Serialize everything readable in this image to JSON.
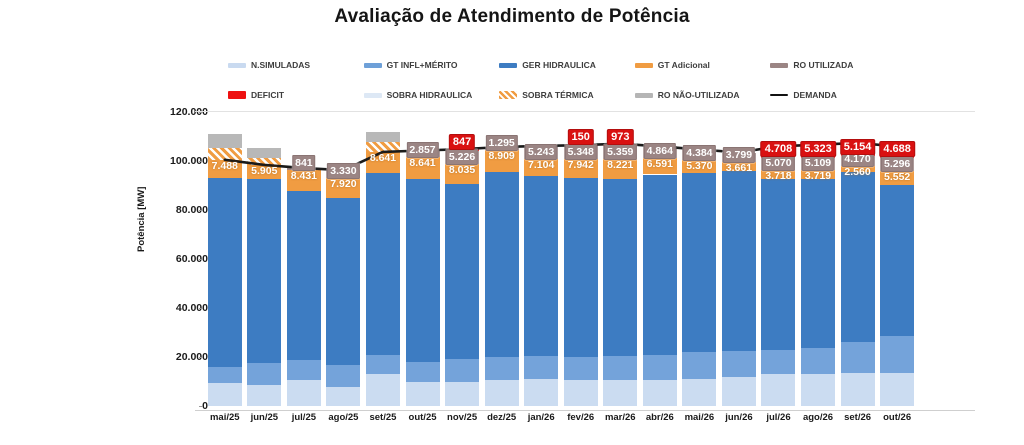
{
  "page": {
    "title": "Avaliação de Atendimento de Potência",
    "background": "#ffffff"
  },
  "chart_data": {
    "type": "bar",
    "subtype": "stacked-bars-with-demand-line",
    "title": "Avaliação de Atendimento de Potência",
    "xlabel": "",
    "ylabel": "Potência [MW]",
    "ylim": [
      0,
      120000
    ],
    "yticks": [
      {
        "value": 0,
        "label": "0"
      },
      {
        "value": 20000,
        "label": "20.000"
      },
      {
        "value": 40000,
        "label": "40.000"
      },
      {
        "value": 60000,
        "label": "60.000"
      },
      {
        "value": 80000,
        "label": "80.000"
      },
      {
        "value": 100000,
        "label": "100.000"
      },
      {
        "value": 120000,
        "label": "120.000"
      }
    ],
    "grid": false,
    "legend_position": "top",
    "categories": [
      "mai/25",
      "jun/25",
      "jul/25",
      "ago/25",
      "set/25",
      "out/25",
      "nov/25",
      "dez/25",
      "jan/26",
      "fev/26",
      "mar/26",
      "abr/26",
      "mai/26",
      "jun/26",
      "jul/26",
      "ago/26",
      "set/26",
      "out/26"
    ],
    "legend": [
      {
        "label": "N.SIMULADAS",
        "swatch_color": "#c9daf0",
        "swatch_style": "bar"
      },
      {
        "label": "GT INFL+MÉRITO",
        "swatch_color": "#6ea0d8",
        "swatch_style": "bar"
      },
      {
        "label": "GER HIDRAULICA",
        "swatch_color": "#3d7cc2",
        "swatch_style": "bar"
      },
      {
        "label": "GT Adicional",
        "swatch_color": "#f09c42",
        "swatch_style": "bar"
      },
      {
        "label": "RO UTILIZADA",
        "swatch_color": "#9b8584",
        "swatch_style": "bar"
      },
      {
        "label": "DEFICIT",
        "swatch_color": "#ee1111",
        "swatch_style": "deficit"
      },
      {
        "label": "SOBRA HIDRAULICA",
        "swatch_color": "#dde8f5",
        "swatch_style": "bar"
      },
      {
        "label": "SOBRA TÉRMICA",
        "swatch_color": "#f09c42",
        "swatch_style": "hatch"
      },
      {
        "label": "RO NÃO-UTILIZADA",
        "swatch_color": "#b5b5b5",
        "swatch_style": "bar"
      },
      {
        "label": "DEMANDA",
        "swatch_color": "#111111",
        "swatch_style": "line"
      }
    ],
    "series": [
      {
        "key": "n_simuladas",
        "name": "N.SIMULADAS",
        "color": "#cbdcf1",
        "values": [
          9400,
          8600,
          10600,
          7800,
          13000,
          10000,
          10000,
          10500,
          11000,
          10500,
          10500,
          10500,
          11000,
          12000,
          13000,
          13000,
          13500,
          13500
        ]
      },
      {
        "key": "gt_infl_merito",
        "name": "GT INFL+MÉRITO",
        "color": "#74a3da",
        "values": [
          6500,
          9000,
          8000,
          9000,
          8000,
          8000,
          9000,
          9500,
          9500,
          9500,
          10000,
          10500,
          11000,
          10500,
          10000,
          10500,
          12500,
          15000
        ]
      },
      {
        "key": "ger_hidraulica",
        "name": "GER HIDRAULICA",
        "color": "#3d7cc2",
        "values": [
          77112,
          74895,
          69228,
          68200,
          74059,
          74802,
          71700,
          75500,
          73300,
          73000,
          72000,
          73500,
          73000,
          73500,
          69500,
          69000,
          69500,
          61900
        ]
      },
      {
        "key": "gt_adicional",
        "name": "GT Adicional",
        "color": "#f09c42",
        "values": [
          7488,
          5905,
          8431,
          7920,
          8641,
          8641,
          8035,
          8909,
          7104,
          7942,
          8221,
          6591,
          5370,
          3661,
          3718,
          3719,
          2560,
          5552
        ],
        "labels": [
          "7.488",
          "5.905",
          "8.431",
          "7.920",
          "8.641",
          "8.641",
          "8.035",
          "8.909",
          "7.104",
          "7.942",
          "8.221",
          "6.591",
          "5.370",
          "3.661",
          "3.718",
          "3.719",
          "2.560",
          "5.552"
        ]
      },
      {
        "key": "sobra_termica",
        "name": "SOBRA TÉRMICA",
        "color": "#f09c42",
        "pattern": "hatch",
        "values": [
          5000,
          3000,
          0,
          0,
          4000,
          0,
          0,
          0,
          0,
          0,
          0,
          0,
          0,
          0,
          0,
          0,
          0,
          0
        ]
      },
      {
        "key": "ro_utilizada",
        "name": "RO UTILIZADA",
        "color": "#9b8584",
        "values": [
          0,
          0,
          841,
          3330,
          0,
          2857,
          5226,
          1295,
          5243,
          5348,
          5359,
          4864,
          4384,
          3799,
          5070,
          5109,
          4170,
          5296
        ],
        "labels": [
          null,
          null,
          "841",
          "3.330",
          null,
          "2.857",
          "5.226",
          "1.295",
          "5.243",
          "5.348",
          "5.359",
          "4.864",
          "4.384",
          "3.799",
          "5.070",
          "5.109",
          "4.170",
          "5.296"
        ]
      },
      {
        "key": "ro_nao_utilizada",
        "name": "RO NÃO-UTILIZADA",
        "color": "#b8b8b8",
        "values": [
          5500,
          4000,
          0,
          0,
          4000,
          0,
          0,
          0,
          0,
          0,
          0,
          0,
          0,
          0,
          0,
          0,
          0,
          0
        ]
      },
      {
        "key": "deficit",
        "name": "DEFICIT",
        "color": "#d91111",
        "values": [
          0,
          0,
          0,
          0,
          0,
          0,
          847,
          0,
          0,
          150,
          973,
          0,
          0,
          0,
          4708,
          5323,
          5154,
          4688
        ],
        "labels": [
          null,
          null,
          null,
          null,
          null,
          null,
          "847",
          null,
          null,
          "150",
          "973",
          null,
          null,
          null,
          "4.708",
          "5.323",
          "5.154",
          "4.688"
        ]
      }
    ],
    "line": {
      "key": "demanda",
      "name": "DEMANDA",
      "color": "#1a1a1a",
      "values": [
        100500,
        98400,
        97100,
        96250,
        103700,
        104300,
        104808,
        105704,
        106147,
        106440,
        107053,
        105955,
        104754,
        103460,
        105996,
        106651,
        107384,
        105936
      ]
    }
  }
}
